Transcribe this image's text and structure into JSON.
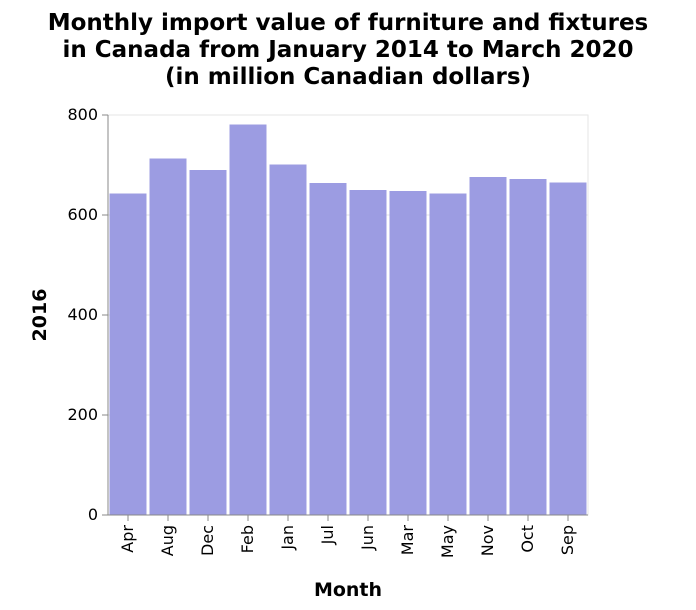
{
  "chart_data": {
    "type": "bar",
    "title_lines": [
      "Monthly import value of furniture and fixtures",
      "in Canada from January 2014 to March 2020",
      "(in million Canadian dollars)"
    ],
    "xlabel": "Month",
    "ylabel": "2016",
    "categories": [
      "Apr",
      "Aug",
      "Dec",
      "Feb",
      "Jan",
      "Jul",
      "Jun",
      "Mar",
      "May",
      "Nov",
      "Oct",
      "Sep"
    ],
    "values": [
      643,
      713,
      690,
      781,
      701,
      664,
      650,
      648,
      643,
      676,
      672,
      665
    ],
    "ylim": [
      0,
      800
    ],
    "yticks": [
      "0",
      "200",
      "400",
      "600",
      "800"
    ],
    "grid": true,
    "bar_color": "#9c9ce2"
  }
}
